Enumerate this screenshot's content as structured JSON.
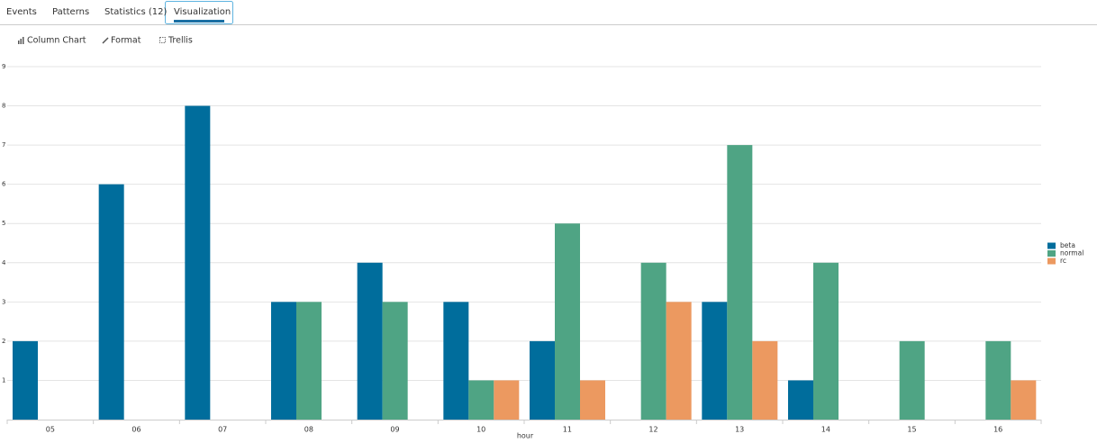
{
  "tabs": [
    "Events",
    "Patterns",
    "Statistics (12)",
    "Visualization"
  ],
  "toolbar": [
    "Column Chart",
    "Format",
    "Trellis"
  ],
  "chart_data": {
    "type": "bar",
    "x_label": "hour",
    "categories": [
      "05",
      "06",
      "07",
      "08",
      "09",
      "10",
      "11",
      "12",
      "13",
      "14",
      "15",
      "16"
    ],
    "series": [
      {
        "name": "beta",
        "color": "#006d9c",
        "values": [
          2,
          6,
          8,
          3,
          4,
          3,
          2,
          null,
          3,
          1,
          null,
          null
        ]
      },
      {
        "name": "normal",
        "color": "#4fa484",
        "values": [
          null,
          null,
          null,
          3,
          3,
          1,
          5,
          4,
          7,
          4,
          2,
          2
        ]
      },
      {
        "name": "rc",
        "color": "#ec9960",
        "values": [
          null,
          null,
          null,
          null,
          null,
          1,
          1,
          3,
          2,
          null,
          null,
          1
        ]
      }
    ],
    "ylim": [
      0,
      9
    ],
    "yticks": [
      1,
      2,
      3,
      4,
      5,
      6,
      7,
      8,
      9
    ],
    "grid": true,
    "legend": "right"
  }
}
